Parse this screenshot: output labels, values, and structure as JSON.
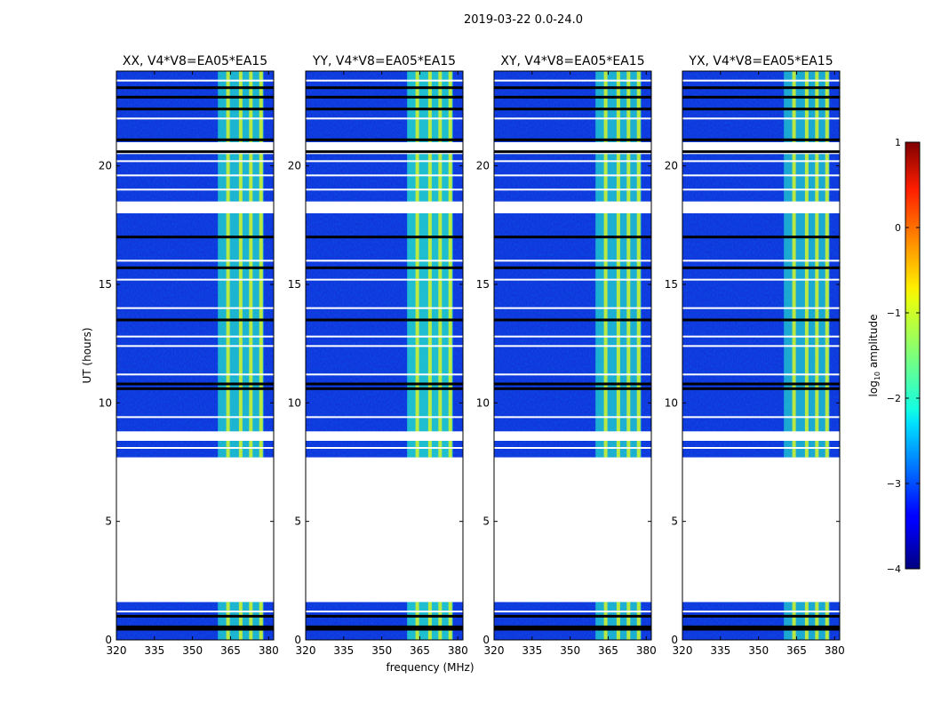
{
  "figure": {
    "suptitle": "2019-03-22 0.0-24.0"
  },
  "chart_data": {
    "type": "heatmap",
    "title": "2019-03-22 0.0-24.0",
    "xlabel": "frequency (MHz)",
    "ylabel": "UT (hours)",
    "xlim": [
      320,
      382
    ],
    "ylim": [
      0,
      24
    ],
    "xticks": [
      320,
      335,
      350,
      365,
      380
    ],
    "yticks": [
      0,
      5,
      10,
      15,
      20
    ],
    "panels": [
      {
        "title": "XX, V4*V8=EA05*EA15",
        "polarization": "XX"
      },
      {
        "title": "YY, V4*V8=EA05*EA15",
        "polarization": "YY"
      },
      {
        "title": "XY, V4*V8=EA05*EA15",
        "polarization": "XY"
      },
      {
        "title": "YX, V4*V8=EA05*EA15",
        "polarization": "YX"
      }
    ],
    "band": {
      "freq_start_mhz": 360,
      "freq_end_mhz": 378,
      "strong_lines_mhz": [
        364,
        369,
        373,
        377
      ]
    },
    "data_time_ranges_hours": [
      [
        0.0,
        1.6
      ],
      [
        7.7,
        24.0
      ]
    ],
    "flagged_time_ranges_hours": [
      [
        1.6,
        7.7
      ],
      [
        8.4,
        8.8
      ],
      [
        18.0,
        18.5
      ],
      [
        20.5,
        21.0
      ]
    ],
    "colorbar": {
      "label": "log10 amplitude",
      "label_prefix": "log",
      "label_sub": "10",
      "label_suffix": " amplitude",
      "range": [
        -4,
        1
      ],
      "ticks": [
        1,
        0,
        -1,
        -2,
        -3,
        -4
      ],
      "tick_labels": [
        "1",
        "0",
        "−1",
        "−2",
        "−3",
        "−4"
      ],
      "colormap": "jet"
    }
  },
  "colors": {
    "background_low": "#1133dd",
    "band_mid": "#22ddcc",
    "band_high": "#ccee33",
    "flag_dark": "#000000"
  }
}
